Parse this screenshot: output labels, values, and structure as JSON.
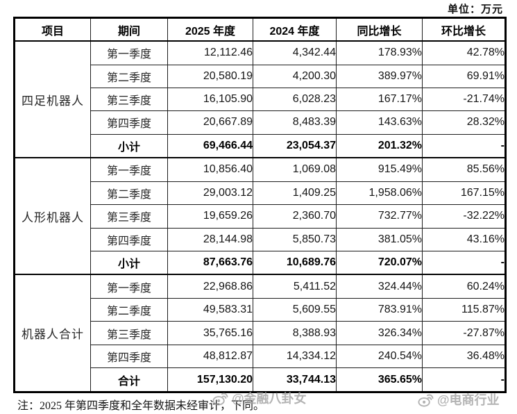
{
  "unit_label": "单位：万元",
  "table": {
    "columns": [
      "项目",
      "期间",
      "2025 年度",
      "2024 年度",
      "同比增长",
      "环比增长"
    ],
    "groups": [
      {
        "project": "四足机器人",
        "rows": [
          {
            "period": "第一季度",
            "y2025": "12,112.46",
            "y2024": "4,342.44",
            "yoy": "178.93%",
            "qoq": "42.78%"
          },
          {
            "period": "第二季度",
            "y2025": "20,580.19",
            "y2024": "4,200.30",
            "yoy": "389.97%",
            "qoq": "69.91%"
          },
          {
            "period": "第三季度",
            "y2025": "16,105.90",
            "y2024": "6,028.23",
            "yoy": "167.17%",
            "qoq": "-21.74%"
          },
          {
            "period": "第四季度",
            "y2025": "20,667.89",
            "y2024": "8,483.39",
            "yoy": "143.63%",
            "qoq": "28.32%"
          },
          {
            "period": "小计",
            "y2025": "69,466.44",
            "y2024": "23,054.37",
            "yoy": "201.32%",
            "qoq": "-",
            "subtotal": true
          }
        ]
      },
      {
        "project": "人形机器人",
        "rows": [
          {
            "period": "第一季度",
            "y2025": "10,856.40",
            "y2024": "1,069.08",
            "yoy": "915.49%",
            "qoq": "85.56%"
          },
          {
            "period": "第二季度",
            "y2025": "29,003.12",
            "y2024": "1,409.25",
            "yoy": "1,958.06%",
            "qoq": "167.15%"
          },
          {
            "period": "第三季度",
            "y2025": "19,659.26",
            "y2024": "2,360.70",
            "yoy": "732.77%",
            "qoq": "-32.22%"
          },
          {
            "period": "第四季度",
            "y2025": "28,144.98",
            "y2024": "5,850.73",
            "yoy": "381.05%",
            "qoq": "43.16%"
          },
          {
            "period": "小计",
            "y2025": "87,663.76",
            "y2024": "10,689.76",
            "yoy": "720.07%",
            "qoq": "-",
            "subtotal": true
          }
        ]
      },
      {
        "project": "机器人合计",
        "rows": [
          {
            "period": "第一季度",
            "y2025": "22,968.86",
            "y2024": "5,411.52",
            "yoy": "324.44%",
            "qoq": "60.24%"
          },
          {
            "period": "第二季度",
            "y2025": "49,583.31",
            "y2024": "5,609.55",
            "yoy": "783.91%",
            "qoq": "115.87%"
          },
          {
            "period": "第三季度",
            "y2025": "35,765.16",
            "y2024": "8,388.93",
            "yoy": "326.34%",
            "qoq": "-27.87%"
          },
          {
            "period": "第四季度",
            "y2025": "48,812.87",
            "y2024": "14,334.12",
            "yoy": "240.54%",
            "qoq": "36.48%"
          },
          {
            "period": "合计",
            "y2025": "157,130.20",
            "y2024": "33,744.13",
            "yoy": "365.65%",
            "qoq": "-",
            "subtotal": true
          }
        ]
      }
    ]
  },
  "note": "注：2025 年第四季度和全年数据未经审计，下同。",
  "watermarks": {
    "center": {
      "icon": "weibo-icon",
      "text": "@金融八卦女"
    },
    "right": {
      "icon": "weibo-icon",
      "text": "@电商行业"
    }
  },
  "colors": {
    "background": "#ffffff",
    "border": "#000000",
    "text": "#1a1a1a",
    "watermark": "#9e9e9e"
  }
}
